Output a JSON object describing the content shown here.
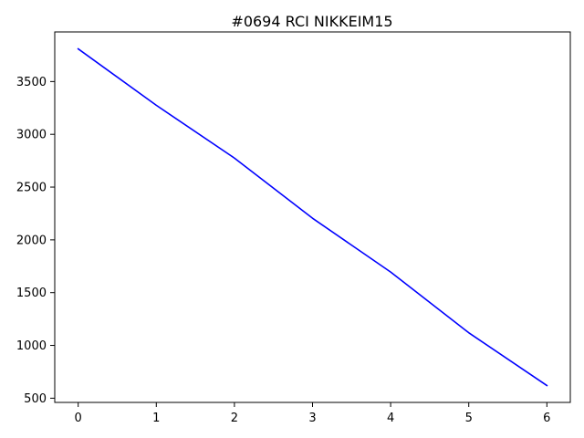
{
  "chart_data": {
    "type": "line",
    "title": "#0694 RCI NIKKEIM15",
    "xlabel": "",
    "ylabel": "",
    "x": [
      0,
      1,
      2,
      3,
      4,
      5,
      6
    ],
    "series": [
      {
        "name": "RCI",
        "color": "#0000ff",
        "values": [
          3810,
          3275,
          2775,
          2205,
          1695,
          1120,
          620
        ]
      }
    ],
    "xlim": [
      -0.3,
      6.3
    ],
    "ylim": [
      460,
      3970
    ],
    "xticks": [
      0,
      1,
      2,
      3,
      4,
      5,
      6
    ],
    "yticks": [
      500,
      1000,
      1500,
      2000,
      2500,
      3000,
      3500
    ],
    "grid": false,
    "legend": "none"
  }
}
